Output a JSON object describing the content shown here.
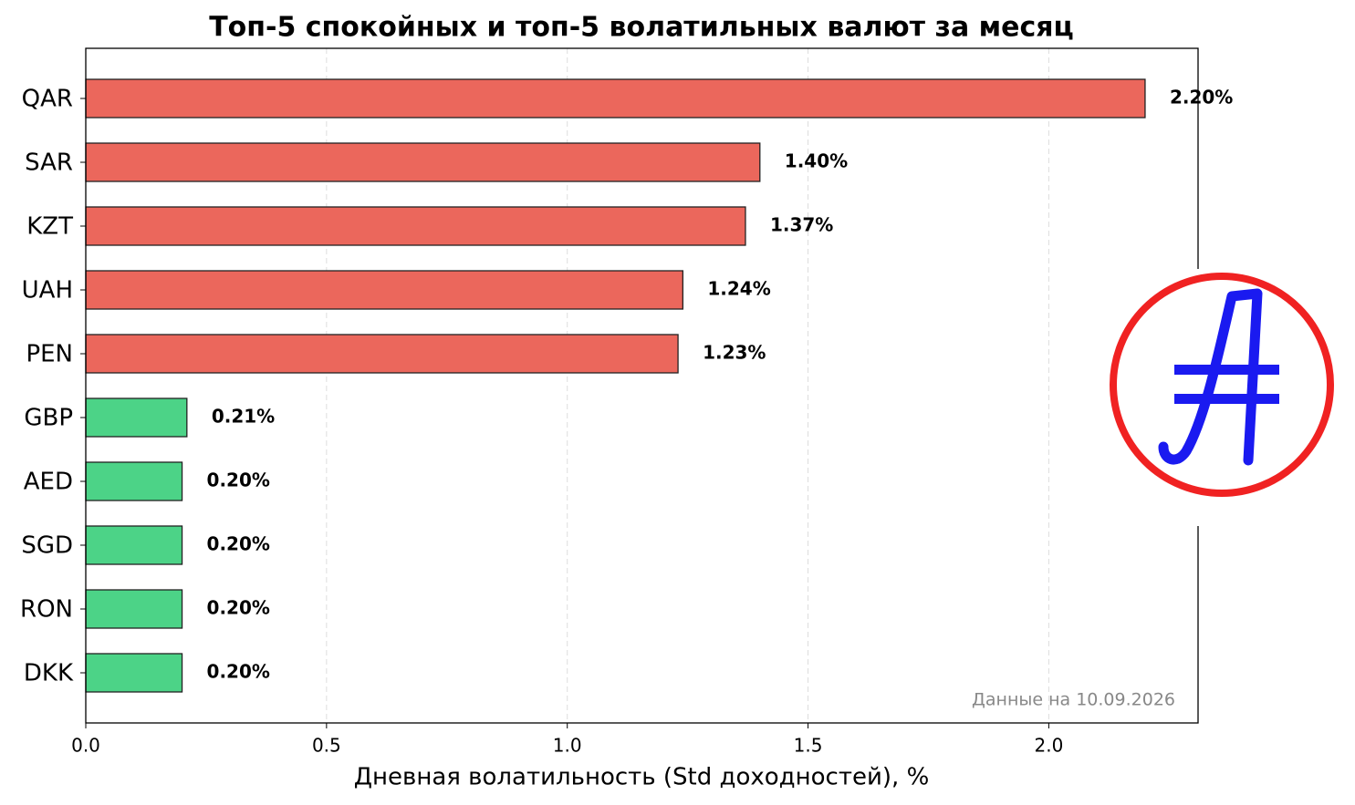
{
  "chart_data": {
    "type": "barh",
    "title": "Топ-5 спокойных и топ-5 волатильных валют за месяц",
    "xlabel": "Дневная волатильность (Std доходностей), %",
    "annotation": "Данные на 10.09.2026",
    "categories": [
      "QAR",
      "SAR",
      "KZT",
      "UAH",
      "PEN",
      "GBP",
      "AED",
      "SGD",
      "RON",
      "DKK"
    ],
    "values": [
      2.2,
      1.4,
      1.37,
      1.24,
      1.23,
      0.21,
      0.2,
      0.2,
      0.2,
      0.2
    ],
    "value_labels": [
      "2.20%",
      "1.40%",
      "1.37%",
      "1.24%",
      "1.23%",
      "0.21%",
      "0.20%",
      "0.20%",
      "0.20%",
      "0.20%"
    ],
    "colors": [
      "#eb675c",
      "#eb675c",
      "#eb675c",
      "#eb675c",
      "#eb675c",
      "#4cd387",
      "#4cd387",
      "#4cd387",
      "#4cd387",
      "#4cd387"
    ],
    "xlim": [
      0,
      2.31
    ],
    "xticks": [
      {
        "value": 0,
        "label": "0.0"
      },
      0.5,
      {
        "value": 1,
        "label": "1.0"
      },
      1.5,
      {
        "value": 2,
        "label": "2.0"
      }
    ],
    "grid": true
  }
}
